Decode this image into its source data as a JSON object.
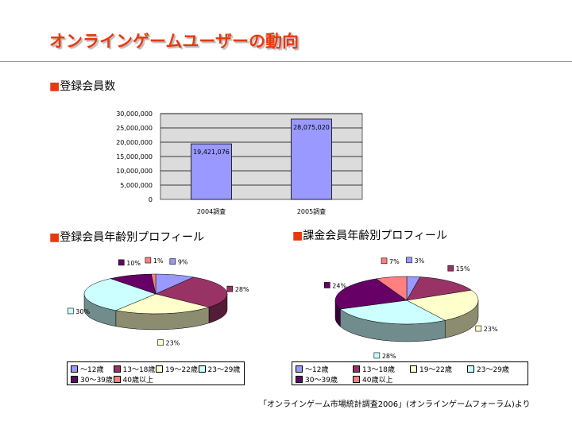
{
  "title": "オンラインゲームユーザーの動向",
  "sections": {
    "registered": "登録会員数",
    "registered_age": "登録会員年齢別プロフィール",
    "paying_age": "課金会員年齢別プロフィール"
  },
  "source": "「オンラインゲーム市場統計調査2006」(オンラインゲームフォーラム)より",
  "colors": {
    "accent": "#e8380d",
    "bar": "#9999ff",
    "plot_bg": "#dcdcdc"
  },
  "chart_data": [
    {
      "type": "bar",
      "categories": [
        "2004調査",
        "2005調査"
      ],
      "values": [
        19421076,
        28075020
      ],
      "data_labels": [
        "19,421,076",
        "28,075,020"
      ],
      "ylim": [
        0,
        30000000
      ],
      "yticks": [
        "0",
        "5,000,000",
        "10,000,000",
        "15,000,000",
        "20,000,000",
        "25,000,000",
        "30,000,000"
      ],
      "grid": true
    },
    {
      "type": "pie",
      "categories": [
        "～12歳",
        "13～18歳",
        "19～22歳",
        "23～29歳",
        "30～39歳",
        "40歳以上"
      ],
      "values": [
        9,
        28,
        23,
        30,
        10,
        1
      ],
      "data_labels": [
        "9%",
        "28%",
        "23%",
        "30%",
        "10%",
        "1%"
      ],
      "colors": [
        "#9999ff",
        "#993366",
        "#ffffcc",
        "#ccffff",
        "#660066",
        "#ff8080"
      ],
      "legend": "bottom"
    },
    {
      "type": "pie",
      "categories": [
        "～12歳",
        "13～18歳",
        "19～22歳",
        "23～29歳",
        "30～39歳",
        "40歳以上"
      ],
      "values": [
        3,
        15,
        23,
        28,
        24,
        7
      ],
      "data_labels": [
        "3%",
        "15%",
        "23%",
        "28%",
        "24%",
        "7%"
      ],
      "colors": [
        "#9999ff",
        "#993366",
        "#ffffcc",
        "#ccffff",
        "#660066",
        "#ff8080"
      ],
      "legend": "bottom"
    }
  ]
}
